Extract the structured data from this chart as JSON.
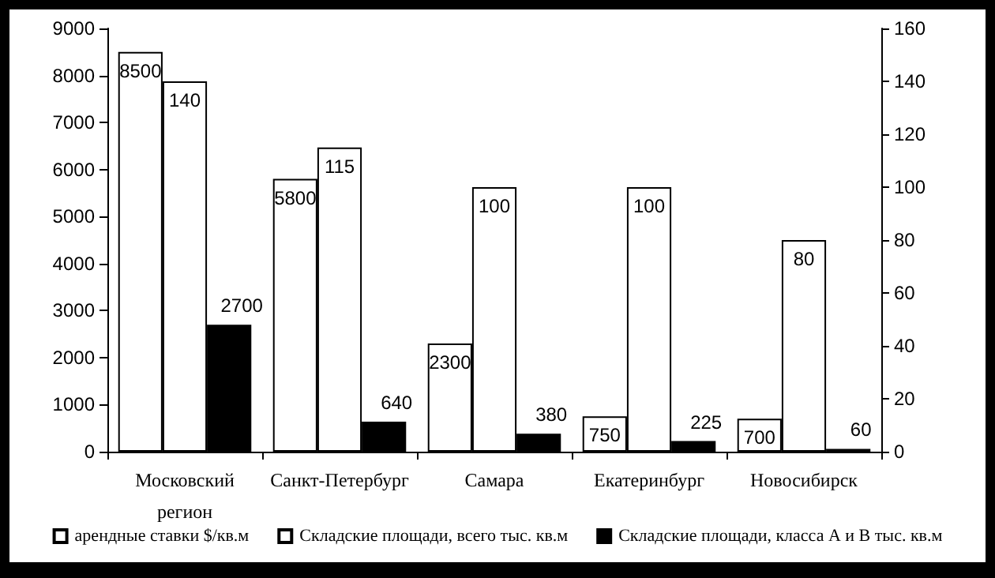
{
  "chart_data": {
    "type": "bar",
    "categories": [
      "Московский регион",
      "Санкт-Петербург",
      "Самара",
      "Екатеринбург",
      "Новосибирск"
    ],
    "series": [
      {
        "name": "арендные ставки $/кв.м",
        "color": "#ffffff",
        "values": [
          8500,
          5800,
          2300,
          750,
          700
        ]
      },
      {
        "name": "Складские площади, всего тыс. кв.м",
        "color": "#ffffff",
        "values": [
          140,
          115,
          100,
          100,
          80
        ],
        "axis": "y2"
      },
      {
        "name": "Складские площади, класса А и В тыс. кв.м",
        "color": "#000000",
        "values": [
          2700,
          640,
          380,
          225,
          60
        ]
      }
    ],
    "ylim": [
      0,
      9000
    ],
    "yticks": [
      0,
      1000,
      2000,
      3000,
      4000,
      5000,
      6000,
      7000,
      8000,
      9000
    ],
    "y2lim": [
      0,
      160
    ],
    "y2ticks": [
      0,
      20,
      40,
      60,
      80,
      100,
      120,
      140,
      160
    ],
    "data_labels": true,
    "legend": "bottom",
    "grid": false
  }
}
